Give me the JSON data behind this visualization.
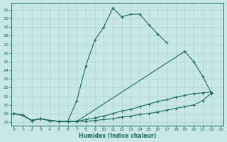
{
  "xlabel": "Humidex (Indice chaleur)",
  "xlim": [
    -0.3,
    23.3
  ],
  "ylim": [
    17.6,
    31.8
  ],
  "yticks": [
    18,
    19,
    20,
    21,
    22,
    23,
    24,
    25,
    26,
    27,
    28,
    29,
    30,
    31
  ],
  "xticks": [
    0,
    1,
    2,
    3,
    4,
    5,
    6,
    7,
    8,
    9,
    10,
    11,
    12,
    13,
    14,
    15,
    16,
    17,
    18,
    19,
    20,
    21,
    22,
    23
  ],
  "bg_color": "#c9e8e5",
  "grid_color": "#b0d8d4",
  "line_color": "#1a6b5a",
  "line1_x": [
    0,
    1,
    2,
    3,
    4,
    5,
    6,
    7,
    8,
    9,
    10,
    11,
    12,
    13,
    14,
    15,
    16,
    17
  ],
  "line1_y": [
    19.0,
    18.8,
    18.2,
    18.4,
    18.2,
    18.1,
    18.1,
    20.5,
    24.5,
    27.5,
    29.0,
    31.2,
    30.2,
    30.5,
    30.5,
    29.3,
    28.2,
    27.2
  ],
  "line2_x": [
    0,
    1,
    2,
    3,
    4,
    5,
    6,
    7,
    19,
    20,
    21,
    22
  ],
  "line2_y": [
    19.0,
    18.8,
    18.2,
    18.4,
    18.2,
    18.1,
    18.1,
    18.1,
    26.2,
    25.0,
    23.3,
    21.3
  ],
  "line3_x": [
    0,
    1,
    2,
    3,
    4,
    5,
    6,
    7,
    8,
    9,
    10,
    11,
    12,
    13,
    14,
    15,
    16,
    17,
    18,
    19,
    20,
    21,
    22
  ],
  "line3_y": [
    19.0,
    18.8,
    18.2,
    18.4,
    18.2,
    18.1,
    18.1,
    18.1,
    18.3,
    18.5,
    18.7,
    19.0,
    19.3,
    19.5,
    19.8,
    20.1,
    20.4,
    20.6,
    20.9,
    21.1,
    21.3,
    21.4,
    21.5
  ],
  "line4_x": [
    0,
    1,
    2,
    3,
    4,
    5,
    6,
    7,
    8,
    9,
    10,
    11,
    12,
    13,
    14,
    15,
    16,
    17,
    18,
    19,
    20,
    21,
    22
  ],
  "line4_y": [
    19.0,
    18.8,
    18.2,
    18.4,
    18.2,
    18.1,
    18.1,
    18.1,
    18.1,
    18.2,
    18.3,
    18.4,
    18.6,
    18.7,
    18.9,
    19.0,
    19.2,
    19.4,
    19.6,
    19.8,
    20.0,
    20.5,
    21.4
  ]
}
